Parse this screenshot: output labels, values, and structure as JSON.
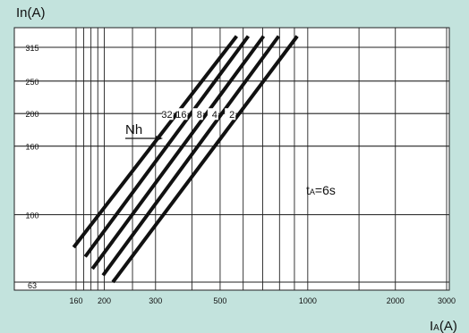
{
  "chart_data": {
    "type": "line",
    "ylabel": "In(A)",
    "xlabel": "IA(A)",
    "xlabel_main": "I",
    "xlabel_sub": "A",
    "xlabel_unit": "(A)",
    "x_scale": "log",
    "y_scale": "log",
    "xlim": [
      160,
      3000
    ],
    "ylim": [
      63,
      315
    ],
    "x_ticks": [
      160,
      200,
      300,
      500,
      1000,
      2000,
      3000
    ],
    "x_tick_labels": [
      "160",
      "200",
      "300",
      "500",
      "1000",
      "2000",
      "3000"
    ],
    "y_ticks": [
      63,
      100,
      160,
      200,
      250,
      315
    ],
    "y_tick_labels": [
      "63",
      "100",
      "160",
      "200",
      "250",
      "315"
    ],
    "grid": true,
    "series": [
      {
        "name": "32",
        "points": [
          [
            157,
            80
          ],
          [
            570,
            340
          ]
        ]
      },
      {
        "name": "16",
        "points": [
          [
            172,
            75
          ],
          [
            625,
            340
          ]
        ]
      },
      {
        "name": "8",
        "points": [
          [
            182,
            69
          ],
          [
            705,
            340
          ]
        ]
      },
      {
        "name": "4",
        "points": [
          [
            198,
            66
          ],
          [
            795,
            340
          ]
        ]
      },
      {
        "name": "2",
        "points": [
          [
            214,
            63
          ],
          [
            920,
            340
          ]
        ]
      }
    ],
    "annotations": {
      "arrow_label": "Nh",
      "curve_param_main": "t",
      "curve_param_sub": "A",
      "curve_param_value": "=6s"
    }
  }
}
